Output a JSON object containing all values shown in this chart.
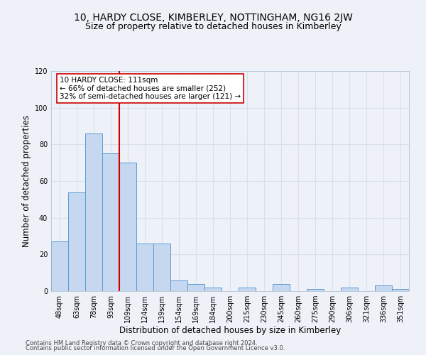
{
  "title": "10, HARDY CLOSE, KIMBERLEY, NOTTINGHAM, NG16 2JW",
  "subtitle": "Size of property relative to detached houses in Kimberley",
  "xlabel": "Distribution of detached houses by size in Kimberley",
  "ylabel": "Number of detached properties",
  "bar_labels": [
    "48sqm",
    "63sqm",
    "78sqm",
    "93sqm",
    "109sqm",
    "124sqm",
    "139sqm",
    "154sqm",
    "169sqm",
    "184sqm",
    "200sqm",
    "215sqm",
    "230sqm",
    "245sqm",
    "260sqm",
    "275sqm",
    "290sqm",
    "306sqm",
    "321sqm",
    "336sqm",
    "351sqm"
  ],
  "bar_values": [
    27,
    54,
    86,
    75,
    70,
    26,
    26,
    6,
    4,
    2,
    0,
    2,
    0,
    4,
    0,
    1,
    0,
    2,
    0,
    3,
    1
  ],
  "bar_color": "#c5d8f0",
  "bar_edge_color": "#5b9bd5",
  "ylim": [
    0,
    120
  ],
  "yticks": [
    0,
    20,
    40,
    60,
    80,
    100,
    120
  ],
  "vline_color": "#cc0000",
  "annotation_text": "10 HARDY CLOSE: 111sqm\n← 66% of detached houses are smaller (252)\n32% of semi-detached houses are larger (121) →",
  "annotation_box_color": "#ffffff",
  "annotation_box_edge": "#cc0000",
  "footer_line1": "Contains HM Land Registry data © Crown copyright and database right 2024.",
  "footer_line2": "Contains public sector information licensed under the Open Government Licence v3.0.",
  "background_color": "#eef2f8",
  "grid_color": "#d8e0ee",
  "title_fontsize": 10,
  "subtitle_fontsize": 9,
  "axis_label_fontsize": 8.5,
  "tick_fontsize": 7,
  "annotation_fontsize": 7.5,
  "footer_fontsize": 6
}
